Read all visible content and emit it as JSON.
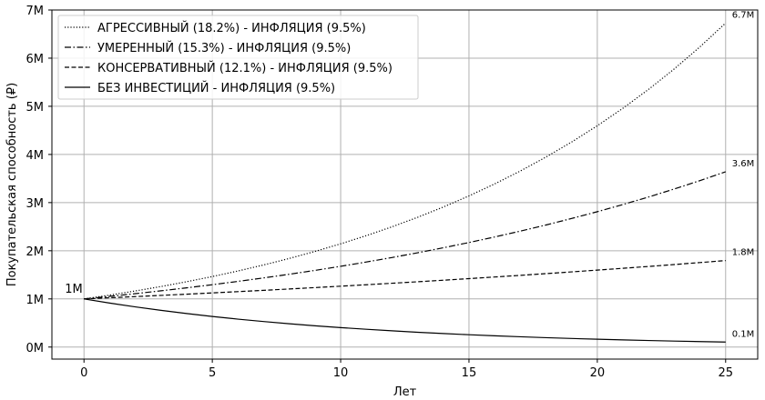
{
  "chart_data": {
    "type": "line",
    "xlabel": "Лет",
    "ylabel": "Покупательская способность (₽)",
    "xlim": [
      -1.25,
      26.25
    ],
    "ylim": [
      -0.25,
      7.0
    ],
    "x_ticks": [
      0,
      5,
      10,
      15,
      20,
      25
    ],
    "y_ticks": [
      0,
      1,
      2,
      3,
      4,
      5,
      6,
      7
    ],
    "y_tick_labels": [
      "0M",
      "1M",
      "2M",
      "3M",
      "4M",
      "5M",
      "6M",
      "7M"
    ],
    "grid": true,
    "legend_position": "top-left",
    "start_label": "1M",
    "x": [
      0,
      1,
      2,
      3,
      4,
      5,
      6,
      7,
      8,
      9,
      10,
      11,
      12,
      13,
      14,
      15,
      16,
      17,
      18,
      19,
      20,
      21,
      22,
      23,
      24,
      25
    ],
    "series": [
      {
        "name": "АГРЕССИВНЫЙ (18.2%) - ИНФЛЯЦИЯ (9.5%)",
        "style": "dotted",
        "end_label": "6.7M",
        "values": [
          1.0,
          1.079,
          1.165,
          1.257,
          1.357,
          1.464,
          1.58,
          1.705,
          1.84,
          1.986,
          2.144,
          2.314,
          2.497,
          2.695,
          2.908,
          3.139,
          3.388,
          3.656,
          3.946,
          4.258,
          4.596,
          4.96,
          5.353,
          5.777,
          6.235,
          6.729
        ]
      },
      {
        "name": "УМЕРЕННЫЙ (15.3%) - ИНФЛЯЦИЯ (9.5%)",
        "style": "dashdot",
        "end_label": "3.6M",
        "values": [
          1.0,
          1.053,
          1.109,
          1.168,
          1.23,
          1.295,
          1.364,
          1.436,
          1.512,
          1.592,
          1.677,
          1.766,
          1.859,
          1.958,
          2.062,
          2.171,
          2.286,
          2.408,
          2.535,
          2.67,
          2.811,
          2.96,
          3.117,
          3.283,
          3.457,
          3.64
        ]
      },
      {
        "name": "КОНСЕРВАТИВНЫЙ (12.1%) - ИНФЛЯЦИЯ (9.5%)",
        "style": "dashed",
        "end_label": "1.8M",
        "values": [
          1.0,
          1.024,
          1.048,
          1.073,
          1.098,
          1.124,
          1.151,
          1.178,
          1.206,
          1.235,
          1.264,
          1.294,
          1.325,
          1.356,
          1.388,
          1.421,
          1.455,
          1.489,
          1.525,
          1.561,
          1.598,
          1.636,
          1.674,
          1.714,
          1.755,
          1.796
        ]
      },
      {
        "name": "БЕЗ ИНВЕСТИЦИЙ - ИНФЛЯЦИЯ (9.5%)",
        "style": "solid",
        "end_label": "0.1M",
        "values": [
          1.0,
          0.913,
          0.834,
          0.762,
          0.696,
          0.635,
          0.58,
          0.53,
          0.484,
          0.442,
          0.404,
          0.369,
          0.337,
          0.307,
          0.281,
          0.256,
          0.234,
          0.214,
          0.195,
          0.178,
          0.163,
          0.149,
          0.136,
          0.124,
          0.113,
          0.104
        ]
      }
    ]
  }
}
